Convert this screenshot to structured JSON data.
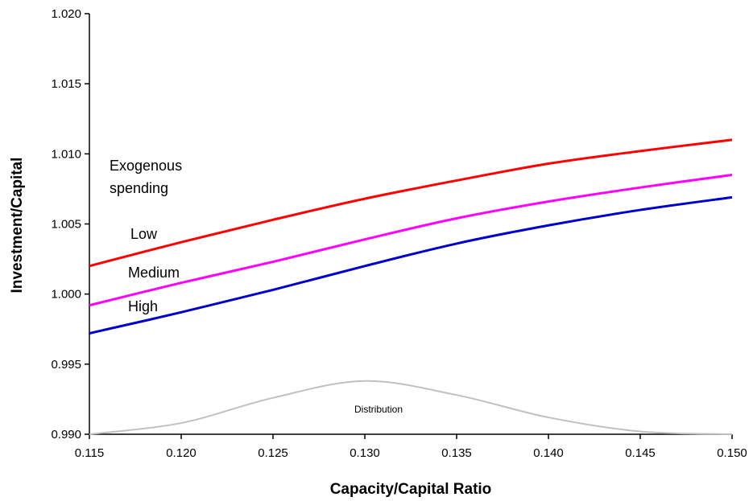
{
  "chart_data": {
    "type": "line",
    "title": "",
    "xlabel": "Capacity/Capital Ratio",
    "ylabel": "Investment/Capital",
    "xlim": [
      0.115,
      0.15
    ],
    "ylim": [
      0.99,
      1.02
    ],
    "x_ticks": [
      "0.115",
      "0.120",
      "0.125",
      "0.130",
      "0.135",
      "0.140",
      "0.145",
      "0.150"
    ],
    "y_ticks": [
      "0.990",
      "0.995",
      "1.000",
      "1.005",
      "1.010",
      "1.015",
      "1.020"
    ],
    "grid": false,
    "x": [
      0.115,
      0.12,
      0.125,
      0.13,
      0.135,
      0.14,
      0.145,
      0.15
    ],
    "series": [
      {
        "name": "Low",
        "color": "#ff0000",
        "values": [
          1.002,
          1.0037,
          1.0053,
          1.0068,
          1.0081,
          1.0093,
          1.0102,
          1.011
        ]
      },
      {
        "name": "Medium",
        "color": "#ff00ff",
        "values": [
          0.9992,
          1.0008,
          1.0023,
          1.0039,
          1.0054,
          1.0066,
          1.0076,
          1.0085
        ]
      },
      {
        "name": "High",
        "color": "#0000cc",
        "values": [
          0.9972,
          0.9987,
          1.0003,
          1.002,
          1.0036,
          1.0049,
          1.006,
          1.0069
        ]
      },
      {
        "name": "Distribution",
        "color": "#c0c0c0",
        "values": [
          0.99,
          0.9908,
          0.9926,
          0.9938,
          0.9928,
          0.9912,
          0.9902,
          0.99
        ]
      }
    ],
    "annotations": {
      "group_title_line1": "Exogenous",
      "group_title_line2": "spending",
      "low": "Low",
      "medium": "Medium",
      "high": "High",
      "distribution": "Distribution"
    }
  }
}
